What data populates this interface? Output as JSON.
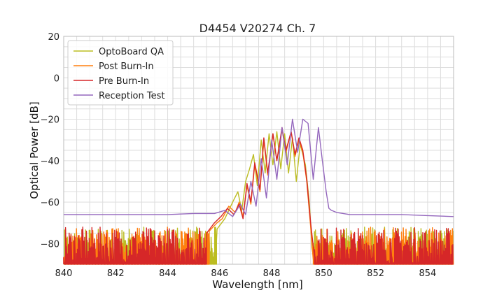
{
  "chart_data": {
    "type": "line",
    "title": "D4454 V20274 Ch. 7",
    "xlabel": "Wavelength [nm]",
    "ylabel": "Optical Power [dB]",
    "xlim": [
      840,
      855
    ],
    "ylim": [
      -90,
      20
    ],
    "xticks": [
      "840",
      "842",
      "844",
      "846",
      "848",
      "850",
      "852",
      "854"
    ],
    "yticks": [
      "20",
      "0",
      "−20",
      "−40",
      "−60",
      "−80"
    ],
    "grid": true,
    "legend_position": "top-left",
    "series": [
      {
        "name": "OptoBoard QA",
        "color": "#bcbd22",
        "noise_floor": {
          "x_start": 840,
          "x_end": 845.9,
          "y_min": -90,
          "y_max": -72
        },
        "x": [
          845.9,
          846.2,
          846.5,
          846.7,
          846.85,
          847.0,
          847.15,
          847.3,
          847.45,
          847.6,
          847.75,
          847.9,
          848.05,
          848.2,
          848.35,
          848.5,
          848.65,
          848.8,
          848.95,
          849.1,
          849.3,
          849.45,
          849.55,
          849.65
        ],
        "y": [
          -73,
          -68,
          -60,
          -55,
          -64,
          -50,
          -44,
          -37,
          -52,
          -30,
          -46,
          -27,
          -42,
          -26,
          -44,
          -27,
          -46,
          -29,
          -50,
          -32,
          -42,
          -60,
          -82,
          -90
        ],
        "noise_floor_after": {
          "x_start": 849.65,
          "x_end": 855,
          "y_min": -90,
          "y_max": -72
        }
      },
      {
        "name": "Post Burn-In",
        "color": "#ff7f0e",
        "noise_floor": {
          "x_start": 840,
          "x_end": 845.6,
          "y_min": -90,
          "y_max": -72
        },
        "x": [
          845.6,
          845.9,
          846.1,
          846.35,
          846.6,
          846.75,
          846.9,
          847.05,
          847.2,
          847.35,
          847.55,
          847.7,
          847.85,
          848.05,
          848.2,
          848.4,
          848.55,
          848.75,
          848.9,
          849.05,
          849.2,
          849.35,
          849.5,
          849.6
        ],
        "y": [
          -74,
          -70,
          -68,
          -62,
          -65,
          -60,
          -67,
          -52,
          -61,
          -42,
          -55,
          -30,
          -47,
          -27,
          -40,
          -25,
          -36,
          -26,
          -38,
          -30,
          -36,
          -50,
          -72,
          -88
        ],
        "noise_floor_after": {
          "x_start": 849.6,
          "x_end": 855,
          "y_min": -90,
          "y_max": -72
        }
      },
      {
        "name": "Pre Burn-In",
        "color": "#d62728",
        "noise_floor": {
          "x_start": 840,
          "x_end": 845.5,
          "y_min": -90,
          "y_max": -72
        },
        "x": [
          845.5,
          845.8,
          846.05,
          846.3,
          846.55,
          846.75,
          846.9,
          847.05,
          847.2,
          847.35,
          847.55,
          847.7,
          847.85,
          848.05,
          848.2,
          848.4,
          848.55,
          848.75,
          848.9,
          849.05,
          849.2,
          849.35,
          849.5,
          849.65
        ],
        "y": [
          -75,
          -70,
          -67,
          -63,
          -66,
          -61,
          -68,
          -51,
          -60,
          -41,
          -54,
          -29,
          -46,
          -27,
          -40,
          -24,
          -35,
          -26,
          -37,
          -29,
          -35,
          -49,
          -70,
          -87
        ],
        "noise_floor_after": {
          "x_start": 849.65,
          "x_end": 855,
          "y_min": -90,
          "y_max": -72
        }
      },
      {
        "name": "Reception Test",
        "color": "#9467bd",
        "x": [
          840,
          842,
          844,
          845,
          845.8,
          846.2,
          846.5,
          846.8,
          847.0,
          847.2,
          847.4,
          847.6,
          847.8,
          848.0,
          848.2,
          848.4,
          848.6,
          848.8,
          849.0,
          849.2,
          849.4,
          849.6,
          849.8,
          849.95,
          850.1,
          850.2,
          850.3,
          850.5,
          851,
          852,
          853,
          854,
          855
        ],
        "y": [
          -66,
          -66,
          -66,
          -65.5,
          -65.5,
          -64,
          -67,
          -61,
          -66,
          -50,
          -62,
          -39,
          -58,
          -30,
          -49,
          -24,
          -42,
          -20,
          -36,
          -20,
          -22,
          -49,
          -24,
          -40,
          -55,
          -63,
          -64,
          -65,
          -66,
          -66,
          -66,
          -66.5,
          -67
        ]
      }
    ]
  }
}
